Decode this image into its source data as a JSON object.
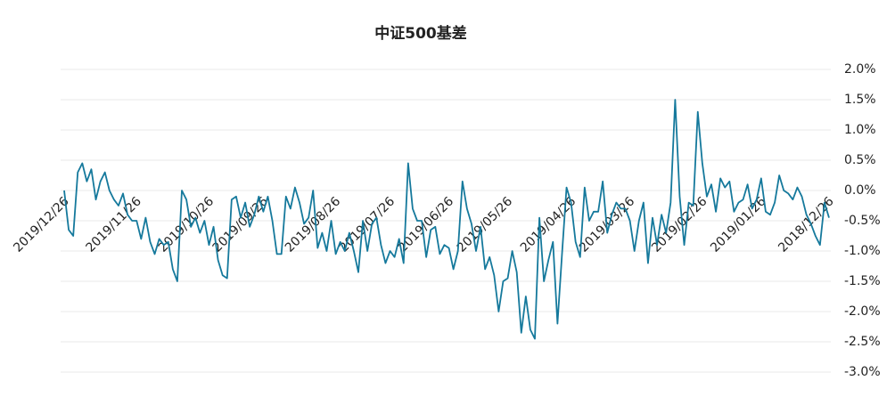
{
  "chart_data": {
    "type": "line",
    "title": "中证500基差",
    "categories": [
      "2019/12/26",
      null,
      null,
      null,
      null,
      null,
      null,
      null,
      null,
      null,
      null,
      null,
      null,
      null,
      null,
      null,
      "2019/11/26",
      null,
      null,
      null,
      null,
      null,
      null,
      null,
      null,
      null,
      null,
      null,
      null,
      null,
      null,
      null,
      "2019/10/26",
      null,
      null,
      null,
      null,
      null,
      null,
      null,
      null,
      null,
      null,
      null,
      "2019/09/26",
      null,
      null,
      null,
      null,
      null,
      null,
      null,
      null,
      null,
      null,
      null,
      null,
      null,
      null,
      null,
      "2019/08/26",
      null,
      null,
      null,
      null,
      null,
      null,
      null,
      null,
      null,
      null,
      null,
      "2019/07/26",
      null,
      null,
      null,
      null,
      null,
      null,
      null,
      null,
      null,
      null,
      null,
      null,
      "2019/06/26",
      null,
      null,
      null,
      null,
      null,
      null,
      null,
      null,
      null,
      null,
      null,
      null,
      "2019/05/26",
      null,
      null,
      null,
      null,
      null,
      null,
      null,
      null,
      null,
      null,
      null,
      null,
      null,
      "2019/04/26",
      null,
      null,
      null,
      null,
      null,
      null,
      null,
      null,
      null,
      null,
      null,
      null,
      "2019/03/26",
      null,
      null,
      null,
      null,
      null,
      null,
      null,
      null,
      null,
      null,
      null,
      null,
      null,
      null,
      null,
      "2019/02/26",
      null,
      null,
      null,
      null,
      null,
      null,
      null,
      null,
      null,
      null,
      null,
      null,
      "2019/01/26",
      null,
      null,
      null,
      null,
      null,
      null,
      null,
      null,
      null,
      null,
      null,
      null,
      null,
      null,
      "2018/12/26"
    ],
    "series": [
      {
        "name": "中证500基差",
        "color": "#15799c",
        "values": [
          0.0,
          -0.65,
          -0.75,
          0.3,
          0.45,
          0.15,
          0.35,
          -0.15,
          0.15,
          0.3,
          0.0,
          -0.15,
          -0.25,
          -0.05,
          -0.4,
          -0.5,
          -0.5,
          -0.8,
          -0.45,
          -0.85,
          -1.05,
          -0.8,
          -0.9,
          -0.85,
          -1.3,
          -1.5,
          0.0,
          -0.15,
          -0.6,
          -0.45,
          -0.7,
          -0.5,
          -0.9,
          -0.6,
          -1.15,
          -1.4,
          -1.45,
          -0.15,
          -0.1,
          -0.45,
          -0.2,
          -0.6,
          -0.4,
          -0.1,
          -0.35,
          -0.1,
          -0.5,
          -1.05,
          -1.05,
          -0.1,
          -0.3,
          0.05,
          -0.2,
          -0.55,
          -0.45,
          0.0,
          -0.95,
          -0.7,
          -1.0,
          -0.5,
          -1.05,
          -0.85,
          -1.0,
          -0.7,
          -1.0,
          -1.35,
          -0.5,
          -1.0,
          -0.55,
          -0.45,
          -0.9,
          -1.2,
          -1.0,
          -1.1,
          -0.8,
          -1.2,
          0.45,
          -0.3,
          -0.5,
          -0.5,
          -1.1,
          -0.65,
          -0.6,
          -1.05,
          -0.9,
          -0.95,
          -1.3,
          -1.0,
          0.15,
          -0.3,
          -0.55,
          -1.0,
          -0.6,
          -1.3,
          -1.1,
          -1.4,
          -2.0,
          -1.5,
          -1.45,
          -1.0,
          -1.35,
          -2.35,
          -1.75,
          -2.3,
          -2.45,
          -0.45,
          -1.5,
          -1.15,
          -0.85,
          -2.2,
          -1.05,
          0.05,
          -0.2,
          -0.85,
          -1.1,
          0.05,
          -0.5,
          -0.35,
          -0.35,
          0.15,
          -0.7,
          -0.4,
          -0.2,
          -0.3,
          -0.3,
          -0.5,
          -1.0,
          -0.5,
          -0.2,
          -1.2,
          -0.45,
          -0.9,
          -0.4,
          -0.7,
          -0.2,
          1.5,
          -0.1,
          -0.9,
          -0.2,
          -0.25,
          1.3,
          0.45,
          -0.1,
          0.1,
          -0.35,
          0.2,
          0.05,
          0.15,
          -0.35,
          -0.2,
          -0.15,
          0.1,
          -0.3,
          -0.15,
          0.2,
          -0.35,
          -0.4,
          -0.2,
          0.25,
          0.0,
          -0.05,
          -0.15,
          0.05,
          -0.1,
          -0.4,
          -0.55,
          -0.75,
          -0.9,
          -0.2,
          -0.45
        ]
      }
    ],
    "ylim": [
      -3.0,
      2.0
    ],
    "yticks": [
      {
        "value": -3.0,
        "label": "-3.0%"
      },
      {
        "value": -2.5,
        "label": "-2.5%"
      },
      {
        "value": -2.0,
        "label": "-2.0%"
      },
      {
        "value": -1.5,
        "label": "-1.5%"
      },
      {
        "value": -1.0,
        "label": "-1.0%"
      },
      {
        "value": -0.5,
        "label": "-0.5%"
      },
      {
        "value": 0.0,
        "label": "0.0%"
      },
      {
        "value": 0.5,
        "label": "0.5%"
      },
      {
        "value": 1.0,
        "label": "1.0%"
      },
      {
        "value": 1.5,
        "label": "1.5%"
      },
      {
        "value": 2.0,
        "label": "2.0%"
      }
    ],
    "grid": true
  }
}
